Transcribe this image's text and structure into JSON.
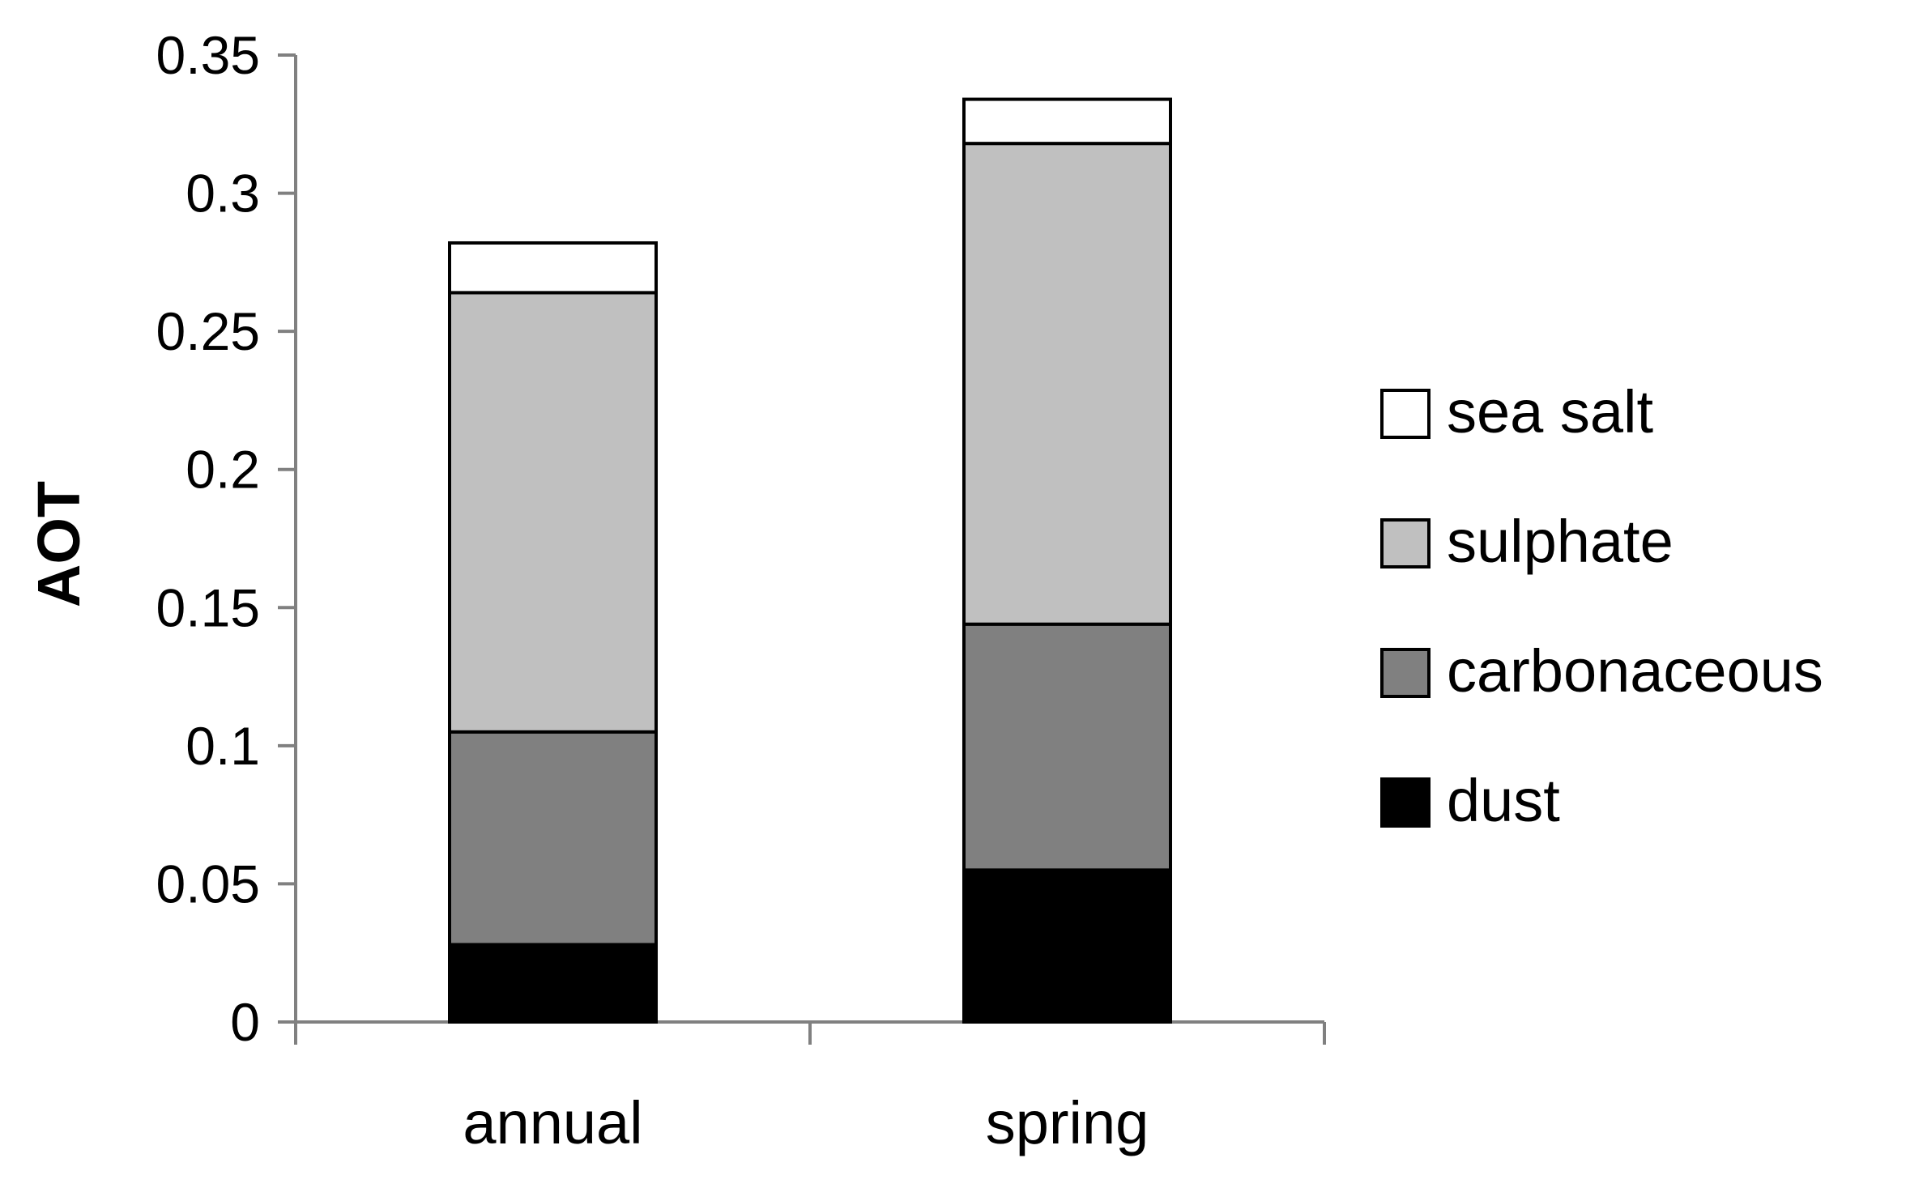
{
  "chart_data": {
    "type": "bar",
    "stacked": true,
    "categories": [
      "annual",
      "spring"
    ],
    "ylabel": "AOT",
    "xlabel": "",
    "ylim": [
      0,
      0.35
    ],
    "yticks": [
      0,
      0.05,
      0.1,
      0.15,
      0.2,
      0.25,
      0.3,
      0.35
    ],
    "ytick_labels": [
      "0",
      "0.05",
      "0.1",
      "0.15",
      "0.2",
      "0.25",
      "0.3",
      "0.35"
    ],
    "grid": false,
    "legend_position": "right",
    "series": [
      {
        "name": "dust",
        "color": "#000000",
        "values": [
          0.028,
          0.055
        ]
      },
      {
        "name": "carbonaceous",
        "color": "#808080",
        "values": [
          0.077,
          0.089
        ]
      },
      {
        "name": "sulphate",
        "color": "#c0c0c0",
        "values": [
          0.159,
          0.174
        ]
      },
      {
        "name": "sea salt",
        "color": "#ffffff",
        "values": [
          0.018,
          0.016
        ]
      }
    ],
    "legend_order": [
      "sea salt",
      "sulphate",
      "carbonaceous",
      "dust"
    ],
    "colors": {
      "axis": "#808080",
      "outline": "#000000"
    }
  }
}
